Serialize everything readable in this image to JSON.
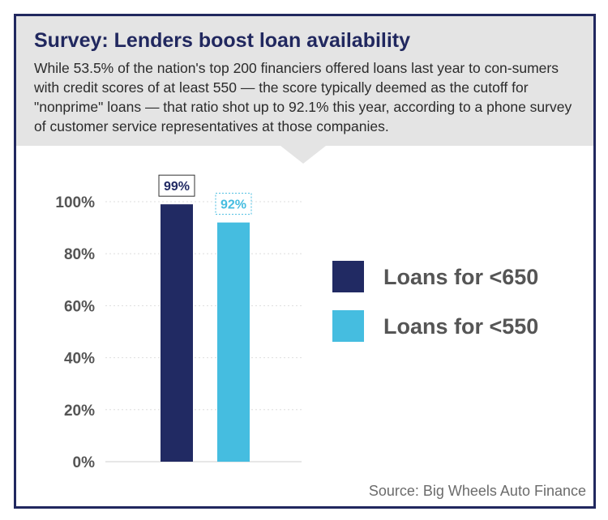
{
  "header": {
    "title": "Survey: Lenders boost loan availability",
    "description": "While 53.5% of the nation's top 200 financiers offered loans last year to con-sumers with credit scores of at least 550 — the score typically deemed as the cutoff for \"nonprime\" loans — that ratio shot up to 92.1% this year, according to a phone survey of customer service representatives at those companies."
  },
  "source": "Source: Big Wheels Auto Finance",
  "colors": {
    "border": "#21285f",
    "series_650": "#212a63",
    "series_550": "#45bde0",
    "header_bg": "#e4e4e4",
    "axis_text": "#555555",
    "legend_text": "#555555"
  },
  "chart_data": {
    "type": "bar",
    "title": "",
    "xlabel": "",
    "ylabel": "",
    "ylim": [
      0,
      100
    ],
    "yticks": [
      {
        "value": 0,
        "label": "0%"
      },
      {
        "value": 20,
        "label": "20%"
      },
      {
        "value": 40,
        "label": "40%"
      },
      {
        "value": 60,
        "label": "60%"
      },
      {
        "value": 80,
        "label": "80%"
      },
      {
        "value": 100,
        "label": "100%"
      }
    ],
    "grid": true,
    "legend_position": "right",
    "series": [
      {
        "name": "Loans for <650",
        "value": 99,
        "label": "99%",
        "color": "#212a63"
      },
      {
        "name": "Loans for <550",
        "value": 92,
        "label": "92%",
        "color": "#45bde0"
      }
    ]
  }
}
